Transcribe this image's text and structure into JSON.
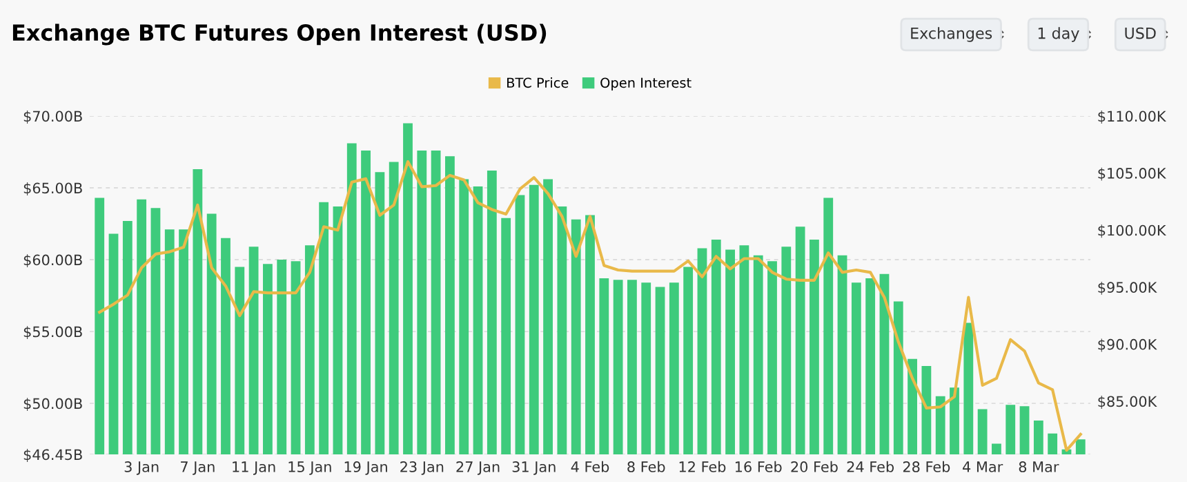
{
  "chart_data": {
    "type": "bar",
    "title": "Exchange BTC Futures Open Interest (USD)",
    "annotations": [
      "Exchanges",
      "1 day",
      "USD"
    ],
    "categories": [
      null,
      null,
      null,
      "3 Jan",
      null,
      null,
      null,
      "7 Jan",
      null,
      null,
      null,
      "11 Jan",
      null,
      null,
      null,
      "15 Jan",
      null,
      null,
      null,
      "19 Jan",
      null,
      null,
      null,
      "23 Jan",
      null,
      null,
      null,
      "27 Jan",
      null,
      null,
      null,
      "31 Jan",
      null,
      null,
      null,
      "4 Feb",
      null,
      null,
      null,
      "8 Feb",
      null,
      null,
      null,
      "12 Feb",
      null,
      null,
      null,
      "16 Feb",
      null,
      null,
      null,
      "20 Feb",
      null,
      null,
      null,
      "24 Feb",
      null,
      null,
      null,
      "28 Feb",
      null,
      null,
      null,
      "4 Mar",
      null,
      null,
      null,
      "8 Mar",
      null,
      null,
      null
    ],
    "series": [
      {
        "name": "BTC Price",
        "type": "line",
        "axis": "y2",
        "color": "#e9b949",
        "values": [
          92.8,
          93.5,
          94.3,
          96.7,
          97.9,
          98.1,
          98.5,
          102.2,
          96.7,
          95.1,
          92.5,
          94.6,
          94.5,
          94.5,
          94.5,
          96.3,
          100.3,
          100.0,
          104.2,
          104.5,
          101.3,
          102.2,
          106.0,
          103.8,
          103.9,
          104.8,
          104.4,
          102.4,
          101.8,
          101.4,
          103.6,
          104.6,
          103.2,
          101.2,
          97.7,
          101.2,
          96.9,
          96.5,
          96.4,
          96.4,
          96.4,
          96.4,
          97.3,
          95.9,
          97.7,
          96.6,
          97.5,
          97.5,
          96.3,
          95.7,
          95.6,
          95.6,
          98.0,
          96.3,
          96.5,
          96.3,
          94.1,
          90.2,
          87.0,
          84.4,
          84.5,
          85.4,
          94.1,
          86.4,
          87.0,
          90.4,
          89.4,
          86.6,
          86.0,
          80.7,
          82.1
        ]
      },
      {
        "name": "Open Interest",
        "color": "#3ecb7c",
        "values": [
          64.3,
          61.8,
          62.7,
          64.2,
          63.6,
          62.1,
          62.1,
          66.3,
          63.2,
          61.5,
          59.5,
          60.9,
          59.7,
          60.0,
          59.9,
          61.0,
          64.0,
          63.7,
          68.1,
          67.6,
          66.1,
          66.8,
          69.5,
          67.6,
          67.6,
          67.2,
          65.6,
          65.1,
          66.2,
          62.9,
          64.5,
          65.2,
          65.6,
          63.7,
          62.8,
          63.1,
          58.7,
          58.6,
          58.6,
          58.4,
          58.1,
          58.4,
          59.5,
          60.8,
          61.4,
          60.7,
          61.0,
          60.3,
          59.9,
          60.9,
          62.3,
          61.4,
          64.3,
          60.3,
          58.4,
          58.7,
          59.0,
          57.1,
          53.1,
          52.6,
          50.5,
          51.1,
          55.6,
          49.6,
          47.2,
          49.9,
          49.8,
          48.8,
          47.9,
          46.8,
          47.5
        ]
      }
    ],
    "ylim": [
      46.45,
      70
    ],
    "yticks": [
      {
        "value": 46.45,
        "label": "$46.45B"
      },
      {
        "value": 50,
        "label": "$50.00B"
      },
      {
        "value": 55,
        "label": "$55.00B"
      },
      {
        "value": 60,
        "label": "$60.00B"
      },
      {
        "value": 65,
        "label": "$65.00B"
      },
      {
        "value": 70,
        "label": "$70.00B"
      }
    ],
    "y2lim": [
      80.34,
      110
    ],
    "y2ticks": [
      {
        "value": 85,
        "label": "$85.00K"
      },
      {
        "value": 90,
        "label": "$90.00K"
      },
      {
        "value": 95,
        "label": "$95.00K"
      },
      {
        "value": 100,
        "label": "$100.00K"
      },
      {
        "value": 105,
        "label": "$105.00K"
      },
      {
        "value": 110,
        "label": "$110.00K"
      }
    ],
    "grid": "y",
    "legend": "top"
  }
}
